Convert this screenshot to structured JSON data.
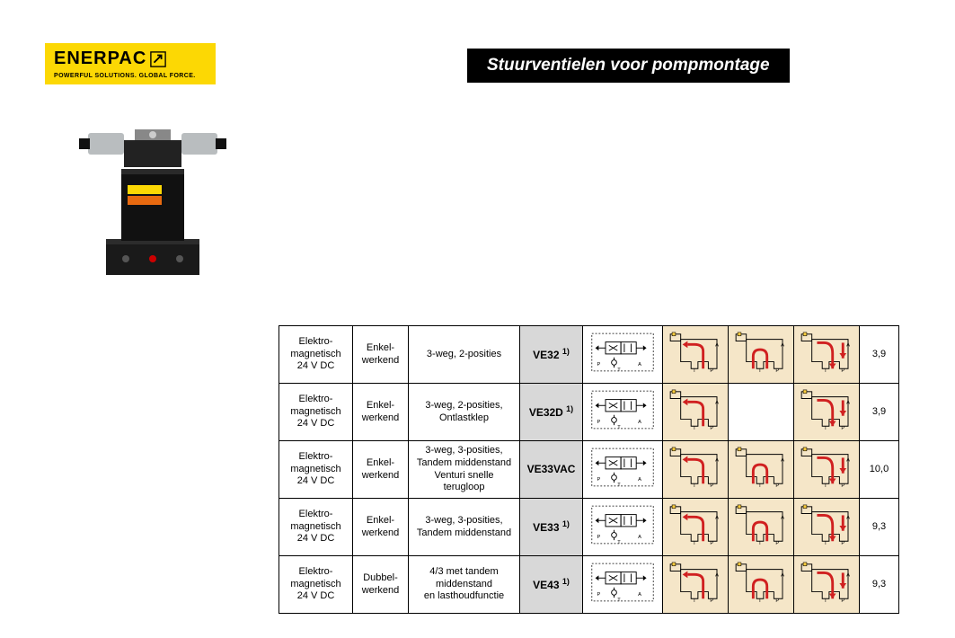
{
  "brand": {
    "name": "ENERPAC",
    "tagline": "POWERFUL SOLUTIONS. GLOBAL FORCE.",
    "logo_bg": "#fcd804",
    "logo_text_color": "#000000"
  },
  "page_title": "Stuurventielen voor pompmontage",
  "title_bar": {
    "bg": "#000000",
    "fg": "#ffffff"
  },
  "table": {
    "border_color": "#000000",
    "model_col_bg": "#d8d8d8",
    "hydraulic_cell_bg": "#f5e6c8",
    "flow_line_color": "#d02020",
    "columns": [
      "actuation",
      "working",
      "valve_type",
      "model",
      "schematic",
      "hyd_pos_a",
      "hyd_pos_center",
      "hyd_pos_b",
      "weight_kg"
    ],
    "rows": [
      {
        "actuation": "Elektro-\nmagnetisch\n24 V DC",
        "working": "Enkel-\nwerkend",
        "valve_type": "3-weg, 2-posities",
        "model": "VE32",
        "model_note": "1)",
        "weight": "3,9",
        "has_center": true
      },
      {
        "actuation": "Elektro-\nmagnetisch\n24 V DC",
        "working": "Enkel-\nwerkend",
        "valve_type": "3-weg, 2-posities,\nOntlastklep",
        "model": "VE32D",
        "model_note": "1)",
        "weight": "3,9",
        "has_center": false
      },
      {
        "actuation": "Elektro-\nmagnetisch\n24 V DC",
        "working": "Enkel-\nwerkend",
        "valve_type": "3-weg, 3-posities,\nTandem middenstand\nVenturi snelle terugloop",
        "model": "VE33VAC",
        "model_note": "",
        "weight": "10,0",
        "has_center": true
      },
      {
        "actuation": "Elektro-\nmagnetisch\n24 V DC",
        "working": "Enkel-\nwerkend",
        "valve_type": "3-weg, 3-posities,\nTandem middenstand",
        "model": "VE33",
        "model_note": "1)",
        "weight": "9,3",
        "has_center": true
      },
      {
        "actuation": "Elektro-\nmagnetisch\n24 V DC",
        "working": "Dubbel-\nwerkend",
        "valve_type": "4/3 met tandem\nmiddenstand\nen lasthoudfunctie",
        "model": "VE43",
        "model_note": "1)",
        "weight": "9,3",
        "has_center": true
      }
    ]
  }
}
